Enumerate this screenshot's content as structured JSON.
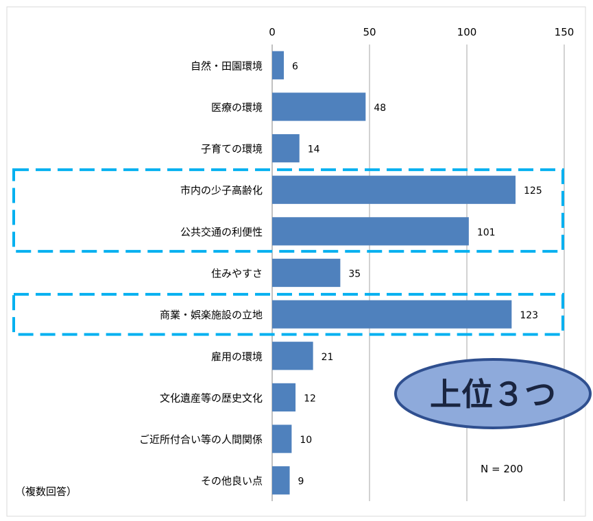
{
  "chart_data": {
    "type": "bar",
    "orientation": "horizontal",
    "categories": [
      "自然・田園環境",
      "医療の環境",
      "子育ての環境",
      "市内の少子高齢化",
      "公共交通の利便性",
      "住みやすさ",
      "商業・娯楽施設の立地",
      "雇用の環境",
      "文化遺産等の歴史文化",
      "ご近所付合い等の人間関係",
      "その他良い点"
    ],
    "values": [
      6,
      48,
      14,
      125,
      101,
      35,
      123,
      21,
      12,
      10,
      9
    ],
    "xlim": [
      0,
      150
    ],
    "x_ticks": [
      0,
      50,
      100,
      150
    ],
    "x_axis_position": "top",
    "grid": "vertical",
    "bar_color": "#4f81bd",
    "highlight_color": "#00b0f0",
    "highlight_groups": [
      [
        "市内の少子高齢化",
        "公共交通の利便性"
      ],
      [
        "商業・娯楽施設の立地"
      ]
    ],
    "note_left": "（複数回答）",
    "sample_size": "N = 200",
    "callout": {
      "text": "上位３つ",
      "fill": "#8eaadb",
      "stroke": "#2f4f8f"
    }
  }
}
